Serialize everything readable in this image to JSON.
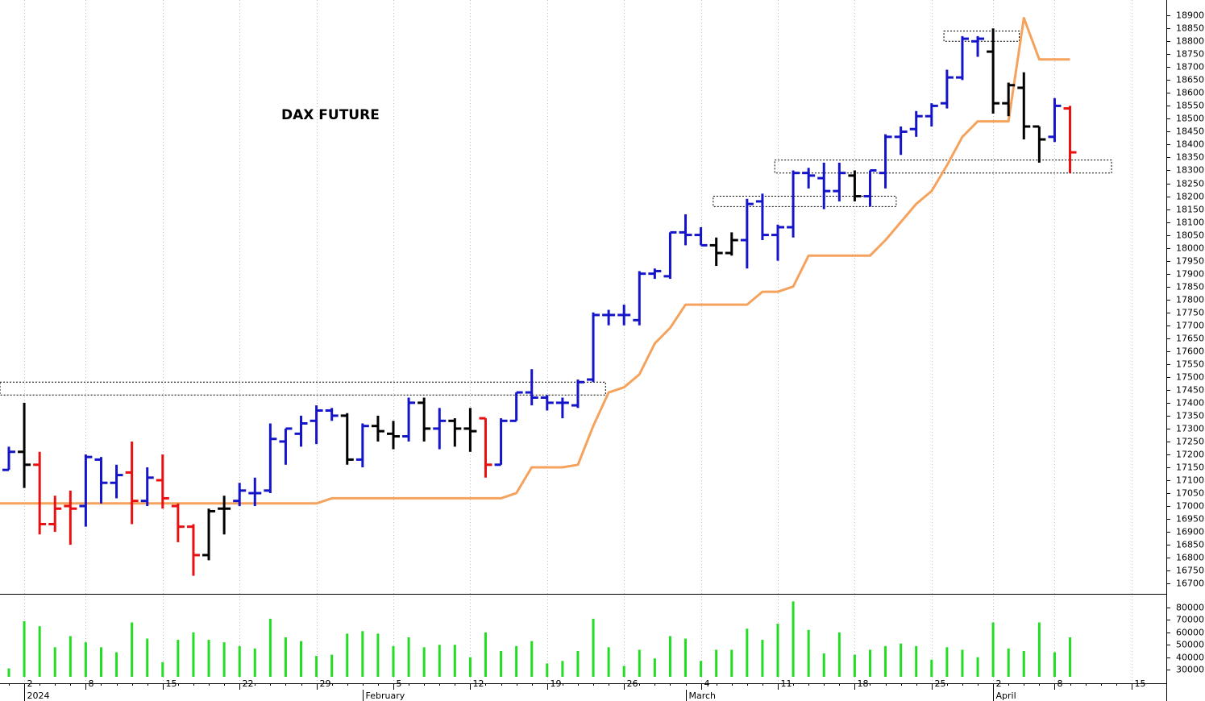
{
  "chart_data": {
    "type": "ohlc",
    "title": "DAX FUTURE",
    "categories": [
      null,
      "2",
      null,
      null,
      null,
      "8",
      null,
      null,
      null,
      null,
      "15",
      null,
      null,
      null,
      null,
      "22",
      null,
      null,
      null,
      null,
      "29",
      null,
      null,
      null,
      null,
      "5",
      null,
      null,
      null,
      null,
      "12",
      null,
      null,
      null,
      null,
      "19",
      null,
      null,
      null,
      null,
      "26",
      null,
      null,
      null,
      null,
      "4",
      null,
      null,
      null,
      null,
      "11",
      null,
      null,
      null,
      null,
      "18",
      null,
      null,
      null,
      null,
      "25",
      null,
      null,
      null,
      "2",
      null,
      null,
      null,
      "8",
      null,
      null,
      null,
      null,
      "15"
    ],
    "month_labels": [
      null,
      "2024",
      null,
      null,
      null,
      null,
      null,
      null,
      null,
      null,
      null,
      null,
      null,
      null,
      null,
      null,
      null,
      null,
      null,
      null,
      null,
      null,
      null,
      "February",
      null,
      null,
      null,
      null,
      null,
      null,
      null,
      null,
      null,
      null,
      null,
      null,
      null,
      null,
      null,
      null,
      null,
      null,
      null,
      null,
      "March",
      null,
      null,
      null,
      null,
      null,
      null,
      null,
      null,
      null,
      null,
      null,
      null,
      null,
      null,
      null,
      null,
      null,
      null,
      null,
      "April",
      null,
      null,
      null,
      null,
      null,
      null,
      null,
      null,
      null
    ],
    "open": [
      17140,
      17210,
      17160,
      16930,
      17000,
      17000,
      17180,
      17090,
      17130,
      17020,
      17100,
      17000,
      16920,
      16810,
      16990,
      17020,
      17050,
      17060,
      17250,
      17280,
      17330,
      17370,
      17350,
      17180,
      17310,
      17280,
      17270,
      17400,
      17300,
      17330,
      17300,
      17340,
      17160,
      17330,
      17440,
      17420,
      17400,
      17390,
      17490,
      17740,
      17740,
      17720,
      17900,
      17890,
      18060,
      18050,
      18010,
      17980,
      18030,
      18180,
      18050,
      18080,
      18290,
      18270,
      18220,
      18280,
      18200,
      18290,
      18430,
      18460,
      18510,
      18560,
      18660,
      18800,
      18760,
      18560,
      18620,
      18470,
      18430,
      18540,
      null,
      null,
      null,
      null
    ],
    "high": [
      17230,
      17400,
      17210,
      17040,
      17060,
      17200,
      17190,
      17160,
      17250,
      17150,
      17200,
      17010,
      16930,
      16990,
      17040,
      17090,
      17110,
      17320,
      17300,
      17350,
      17390,
      17380,
      17360,
      17320,
      17350,
      17330,
      17420,
      17420,
      17380,
      17340,
      17380,
      17340,
      17340,
      17440,
      17530,
      17430,
      17420,
      17490,
      17750,
      17760,
      17780,
      17910,
      17920,
      18060,
      18130,
      18080,
      18040,
      18060,
      18190,
      18210,
      18090,
      18300,
      18310,
      18330,
      18330,
      18300,
      18300,
      18440,
      18470,
      18530,
      18560,
      18690,
      18820,
      18820,
      18850,
      18640,
      18680,
      18470,
      18580,
      18550,
      null,
      null,
      null,
      null
    ],
    "low": [
      17140,
      17070,
      16890,
      16900,
      16850,
      16920,
      17010,
      17030,
      16930,
      17000,
      16990,
      16860,
      16730,
      16790,
      16890,
      17000,
      17000,
      17050,
      17160,
      17230,
      17240,
      17330,
      17160,
      17150,
      17250,
      17220,
      17250,
      17250,
      17220,
      17230,
      17210,
      17110,
      17160,
      17330,
      17390,
      17370,
      17340,
      17380,
      17480,
      17700,
      17700,
      17700,
      17880,
      17880,
      18010,
      18010,
      17930,
      17970,
      17920,
      18030,
      17950,
      18040,
      18230,
      18150,
      18180,
      18180,
      18160,
      18230,
      18360,
      18430,
      18470,
      18540,
      18650,
      18740,
      18520,
      18510,
      18420,
      18330,
      18410,
      18290,
      null,
      null,
      null,
      null
    ],
    "close": [
      17210,
      17160,
      16930,
      16990,
      16990,
      17190,
      17090,
      17120,
      17020,
      17110,
      17030,
      16920,
      16810,
      16980,
      16990,
      17060,
      17050,
      17260,
      17300,
      17320,
      17370,
      17350,
      17180,
      17310,
      17290,
      17270,
      17400,
      17300,
      17330,
      17300,
      17290,
      17160,
      17330,
      17440,
      17420,
      17400,
      17400,
      17480,
      17740,
      17740,
      17740,
      17900,
      17910,
      18060,
      18050,
      18010,
      17980,
      18030,
      18170,
      18050,
      18080,
      18290,
      18280,
      18220,
      18290,
      18200,
      18300,
      18430,
      18450,
      18510,
      18550,
      18660,
      18810,
      18810,
      18560,
      18630,
      18470,
      18420,
      18550,
      18370,
      null,
      null,
      null,
      null
    ],
    "colors": [
      "#1414c8",
      "#000000",
      "#e81010",
      "#e81010",
      "#e81010",
      "#1414c8",
      "#1414c8",
      "#1414c8",
      "#e81010",
      "#1414c8",
      "#e81010",
      "#e81010",
      "#e81010",
      "#000000",
      "#000000",
      "#1414c8",
      "#1414c8",
      "#1414c8",
      "#1414c8",
      "#1414c8",
      "#1414c8",
      "#1414c8",
      "#000000",
      "#1414c8",
      "#000000",
      "#000000",
      "#1414c8",
      "#000000",
      "#1414c8",
      "#000000",
      "#000000",
      "#e81010",
      "#1414c8",
      "#1414c8",
      "#1414c8",
      "#1414c8",
      "#1414c8",
      "#1414c8",
      "#1414c8",
      "#1414c8",
      "#1414c8",
      "#1414c8",
      "#1414c8",
      "#1414c8",
      "#1414c8",
      "#1414c8",
      "#000000",
      "#000000",
      "#1414c8",
      "#1414c8",
      "#1414c8",
      "#1414c8",
      "#1414c8",
      "#1414c8",
      "#1414c8",
      "#000000",
      "#1414c8",
      "#1414c8",
      "#1414c8",
      "#1414c8",
      "#1414c8",
      "#1414c8",
      "#1414c8",
      "#1414c8",
      "#000000",
      "#000000",
      "#000000",
      "#000000",
      "#1414c8",
      "#e81010",
      null,
      null,
      null,
      null
    ],
    "stop_line": {
      "color": "#f5a25d",
      "values": [
        17010,
        17010,
        17010,
        17010,
        17010,
        17010,
        17010,
        17010,
        17010,
        17010,
        17010,
        17010,
        17010,
        17010,
        17010,
        17010,
        17010,
        17010,
        17010,
        17010,
        17010,
        17030,
        17030,
        17030,
        17030,
        17030,
        17030,
        17030,
        17030,
        17030,
        17030,
        17030,
        17030,
        17050,
        17150,
        17150,
        17150,
        17160,
        17310,
        17440,
        17460,
        17510,
        17630,
        17690,
        17780,
        17780,
        17780,
        17780,
        17780,
        17830,
        17830,
        17850,
        17970,
        17970,
        17970,
        17970,
        17970,
        18030,
        18100,
        18170,
        18220,
        18320,
        18430,
        18490,
        18490,
        18490,
        18890,
        18730,
        18730,
        18730,
        null,
        null,
        null,
        null
      ]
    },
    "zones": [
      {
        "low": 17430,
        "high": 17480,
        "start": -0.6,
        "end": 38.8
      },
      {
        "low": 18160,
        "high": 18200,
        "start": 45.8,
        "end": 57.7
      },
      {
        "low": 18290,
        "high": 18340,
        "start": 49.8,
        "end": 71.7
      },
      {
        "low": 18800,
        "high": 18840,
        "start": 60.8,
        "end": 65.7
      }
    ],
    "ylim": [
      16660,
      18960
    ],
    "yticks": [
      16700,
      16750,
      16800,
      16850,
      16900,
      16950,
      17000,
      17050,
      17100,
      17150,
      17200,
      17250,
      17300,
      17350,
      17400,
      17450,
      17500,
      17550,
      17600,
      17650,
      17700,
      17750,
      17800,
      17850,
      17900,
      17950,
      18000,
      18050,
      18100,
      18150,
      18200,
      18250,
      18300,
      18350,
      18400,
      18450,
      18500,
      18550,
      18600,
      18650,
      18700,
      18750,
      18800,
      18850,
      18900
    ],
    "volume": {
      "type": "bar",
      "color": "#22dd22",
      "values": [
        31000,
        69000,
        65000,
        48000,
        57000,
        52000,
        48000,
        44000,
        68000,
        55000,
        36000,
        54000,
        60000,
        54000,
        52000,
        49000,
        47000,
        71000,
        56000,
        53000,
        41000,
        42000,
        59000,
        61000,
        59000,
        49000,
        56000,
        48000,
        50000,
        50000,
        40000,
        60000,
        45000,
        49000,
        53000,
        35000,
        37000,
        45000,
        71000,
        48000,
        33000,
        46000,
        39000,
        57000,
        55000,
        37000,
        46000,
        46000,
        63000,
        54000,
        67000,
        85000,
        62000,
        43000,
        60000,
        42000,
        46000,
        49000,
        51000,
        49000,
        38000,
        48000,
        46000,
        40000,
        68000,
        47000,
        45000,
        68000,
        44000,
        56000,
        null,
        null,
        null,
        null
      ],
      "ylim": [
        24200,
        90400
      ],
      "yticks": [
        30000,
        40000,
        50000,
        60000,
        70000,
        80000
      ]
    }
  }
}
